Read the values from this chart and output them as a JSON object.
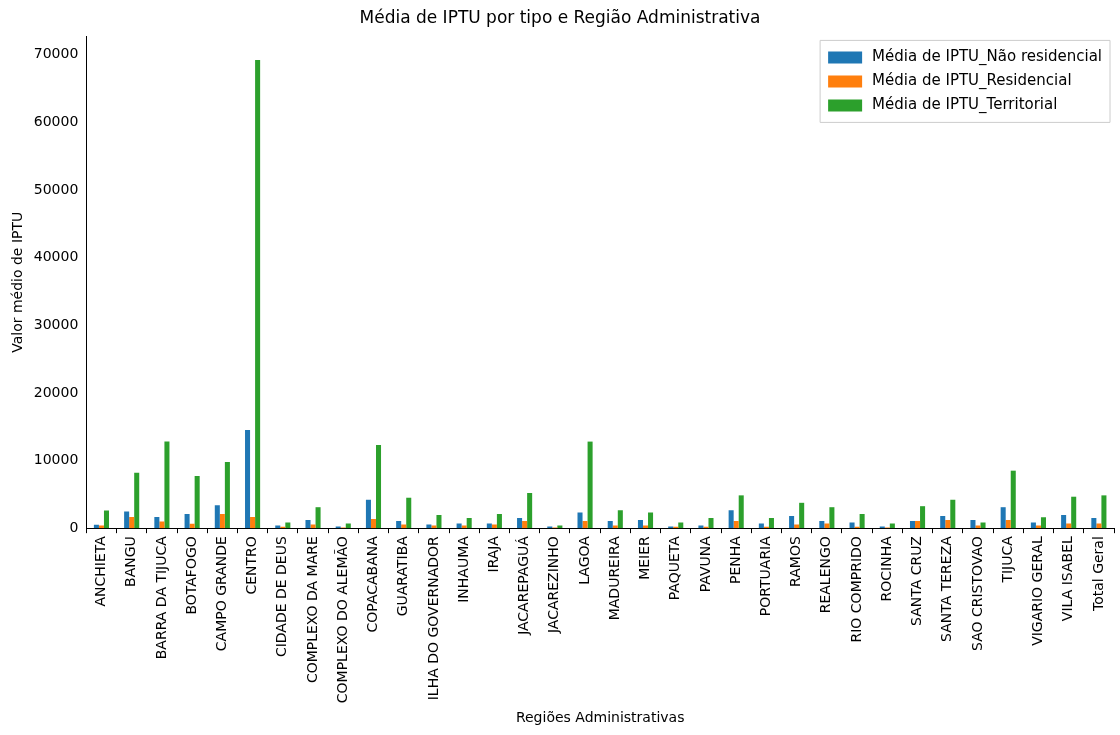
{
  "chart_data": {
    "type": "bar",
    "title": "Média de IPTU por tipo e Região Administrativa",
    "xlabel": "Regiões Administrativas",
    "ylabel": "Valor médio de IPTU",
    "categories": [
      "ANCHIETA",
      "BANGU",
      "BARRA DA TIJUCA",
      "BOTAFOGO",
      "CAMPO GRANDE",
      "CENTRO",
      "CIDADE DE DEUS",
      "COMPLEXO DA MARE",
      "COMPLEXO DO ALEMÃO",
      "COPACABANA",
      "GUARATIBA",
      "ILHA DO GOVERNADOR",
      "INHAUMA",
      "IRAJA",
      "JACAREPAGUÁ",
      "JACAREZINHO",
      "LAGOA",
      "MADUREIRA",
      "MEIER",
      "PAQUETA",
      "PAVUNA",
      "PENHA",
      "PORTUARIA",
      "RAMOS",
      "REALENGO",
      "RIO COMPRIDO",
      "ROCINHA",
      "SANTA CRUZ",
      "SANTA TEREZA",
      "SAO CRISTOVAO",
      "TIJUCA",
      "VIGARIO GERAL",
      "VILA ISABEL",
      "Total Geral"
    ],
    "series": [
      {
        "name": "Média de IPTU_Não residencial",
        "color": "#1f77b4",
        "values": [
          500,
          2450,
          1650,
          2100,
          3400,
          14500,
          400,
          1200,
          250,
          4200,
          1050,
          550,
          700,
          700,
          1500,
          250,
          2300,
          1050,
          1200,
          250,
          400,
          2650,
          700,
          1800,
          1050,
          850,
          250,
          1050,
          1800,
          1200,
          3100,
          850,
          1950,
          1500
        ]
      },
      {
        "name": "Média de IPTU_Residencial",
        "color": "#ff7f0e",
        "values": [
          400,
          1650,
          1000,
          650,
          2100,
          1650,
          200,
          550,
          100,
          1350,
          550,
          400,
          400,
          550,
          1050,
          100,
          1050,
          400,
          400,
          200,
          200,
          1050,
          200,
          550,
          700,
          200,
          100,
          1050,
          1200,
          400,
          1200,
          400,
          700,
          700
        ]
      },
      {
        "name": "Média de IPTU_Territorial",
        "color": "#2ca02c",
        "values": [
          2600,
          8200,
          12800,
          7700,
          9800,
          69200,
          850,
          3100,
          700,
          12300,
          4500,
          1950,
          1500,
          2100,
          5200,
          400,
          12800,
          2650,
          2300,
          850,
          1500,
          4850,
          1500,
          3750,
          3100,
          2100,
          700,
          3250,
          4200,
          850,
          8500,
          1600,
          4650,
          4850
        ]
      }
    ],
    "ylim": [
      0,
      72700
    ],
    "yticks": [
      0,
      10000,
      20000,
      30000,
      40000,
      50000,
      60000,
      70000
    ],
    "legend": "top right"
  }
}
